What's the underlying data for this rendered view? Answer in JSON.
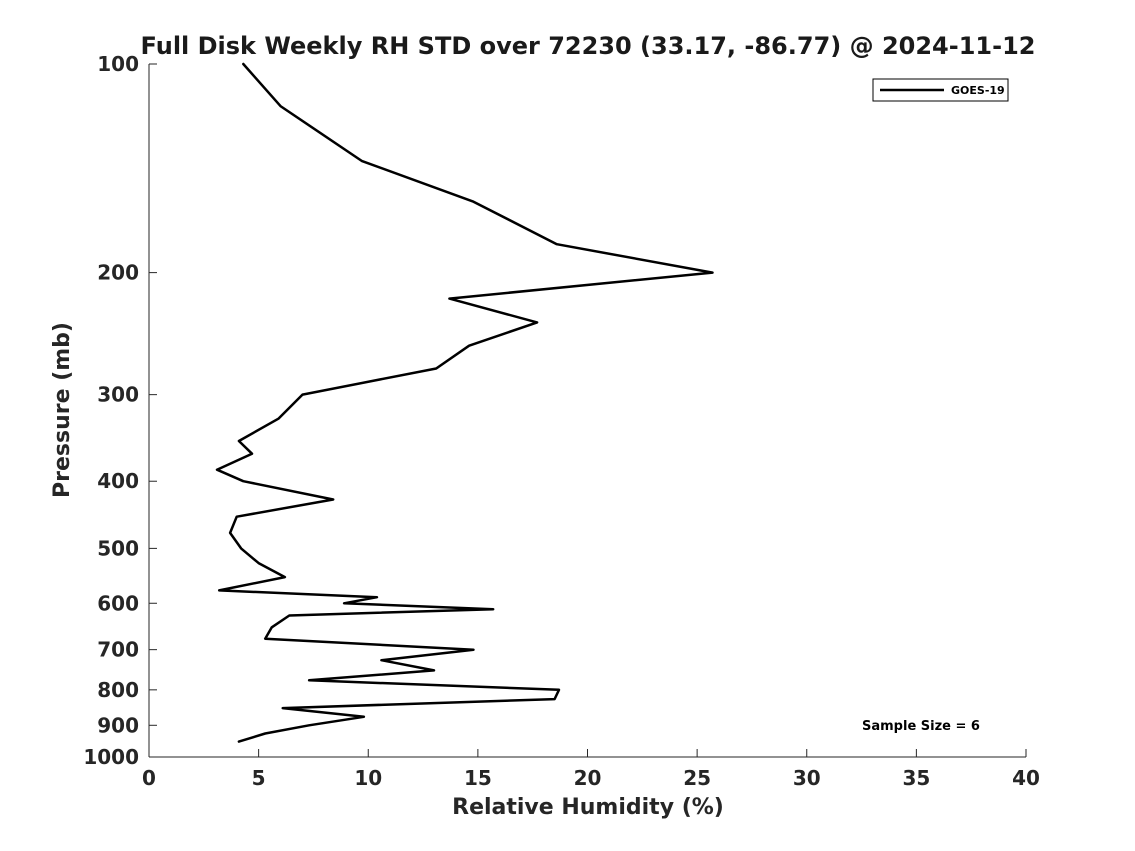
{
  "chart_data": {
    "type": "line",
    "title": "Full Disk Weekly RH STD over 72230 (33.17, -86.77) @ 2024-11-12",
    "xlabel": "Relative Humidity (%)",
    "ylabel": "Pressure (mb)",
    "xlim": [
      0,
      40
    ],
    "ylim": [
      1000,
      100
    ],
    "y_scale": "log",
    "x_ticks": [
      0,
      5,
      10,
      15,
      20,
      25,
      30,
      35,
      40
    ],
    "y_ticks": [
      100,
      200,
      300,
      400,
      500,
      600,
      700,
      800,
      900,
      1000
    ],
    "grid": false,
    "legend_position": "top-right",
    "series": [
      {
        "name": "GOES-19",
        "color": "#000000",
        "x": [
          4.3,
          6.0,
          9.7,
          14.8,
          18.6,
          25.7,
          13.7,
          17.7,
          14.6,
          13.1,
          7.0,
          5.9,
          4.1,
          4.7,
          3.1,
          4.3,
          8.4,
          4.0,
          3.7,
          4.2,
          5.0,
          6.2,
          3.2,
          10.4,
          8.9,
          15.7,
          6.4,
          5.6,
          5.3,
          14.8,
          10.6,
          13.0,
          7.3,
          18.7,
          18.5,
          6.1,
          9.8,
          7.3,
          5.3,
          4.1
        ],
        "y": [
          100,
          115,
          138,
          158,
          182,
          200,
          218,
          236,
          255,
          275,
          300,
          325,
          350,
          365,
          385,
          400,
          425,
          450,
          475,
          500,
          525,
          550,
          575,
          588,
          600,
          612,
          625,
          650,
          675,
          700,
          725,
          750,
          775,
          800,
          825,
          850,
          875,
          900,
          925,
          950
        ]
      }
    ],
    "annotations": [
      {
        "text": "Sample Size = 6",
        "x": 32.5,
        "y": 850
      }
    ]
  }
}
